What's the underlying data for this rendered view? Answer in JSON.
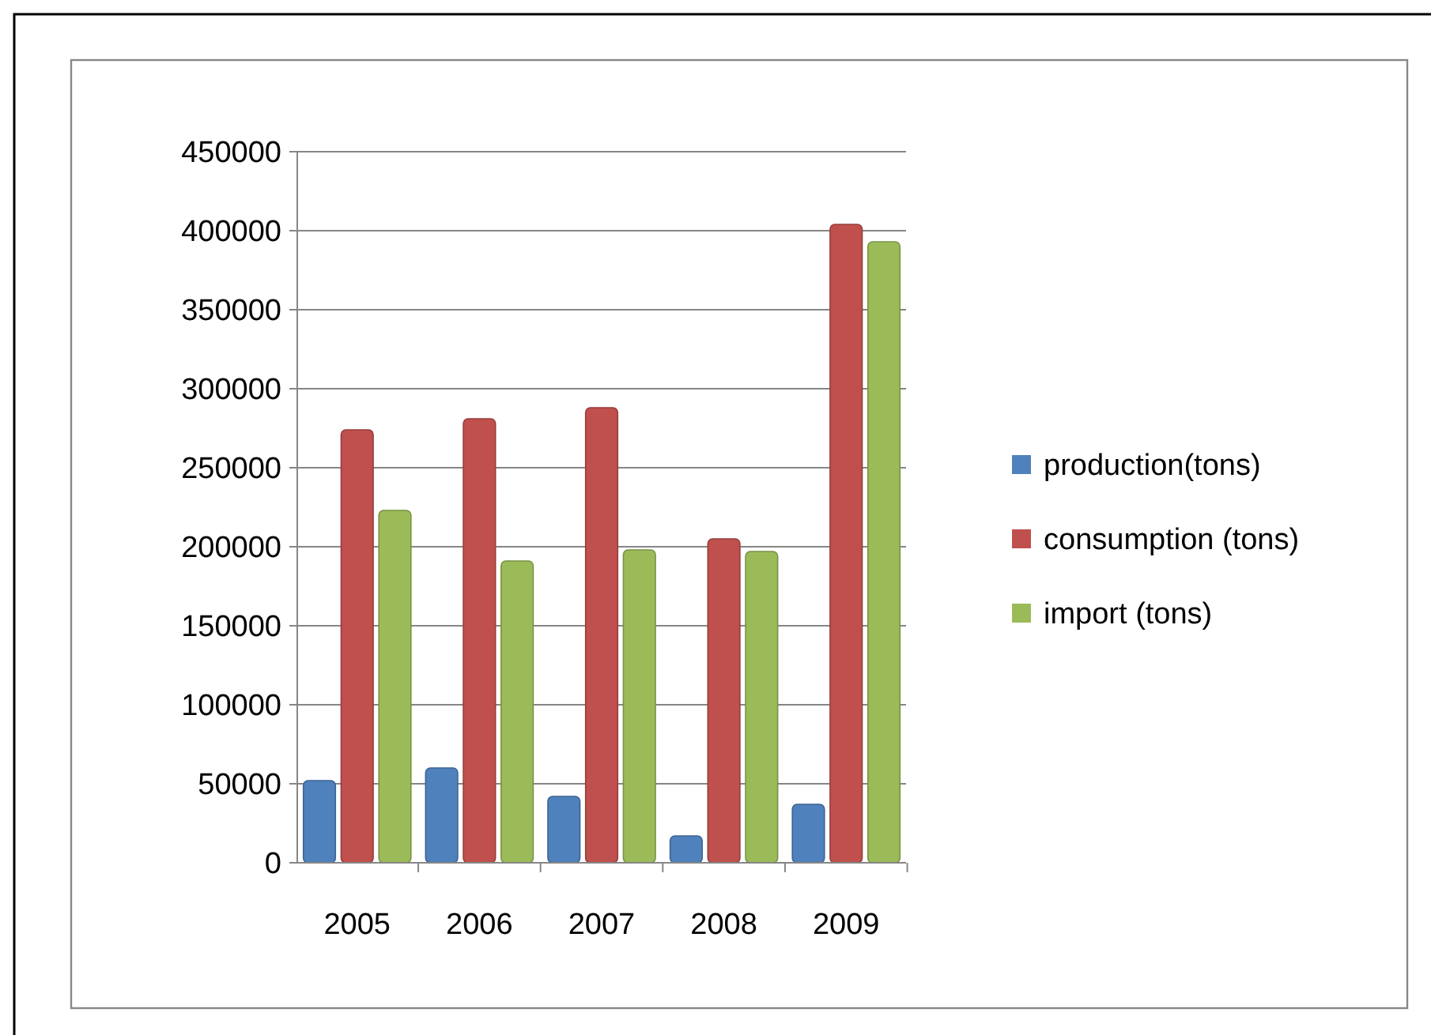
{
  "chart_data": {
    "type": "bar",
    "categories": [
      "2005",
      "2006",
      "2007",
      "2008",
      "2009"
    ],
    "series": [
      {
        "name": "production(tons)",
        "color": "#4f81bd",
        "values": [
          52000,
          60000,
          42000,
          17000,
          37000
        ]
      },
      {
        "name": "consumption (tons)",
        "color": "#c0504d",
        "values": [
          274000,
          281000,
          288000,
          205000,
          404000
        ]
      },
      {
        "name": "import (tons)",
        "color": "#9bbb59",
        "values": [
          223000,
          191000,
          198000,
          197000,
          393000
        ]
      }
    ],
    "ylim": [
      0,
      450000
    ],
    "yticks": [
      0,
      50000,
      100000,
      150000,
      200000,
      250000,
      300000,
      350000,
      400000,
      450000
    ],
    "grid": "y",
    "legend": "right"
  }
}
